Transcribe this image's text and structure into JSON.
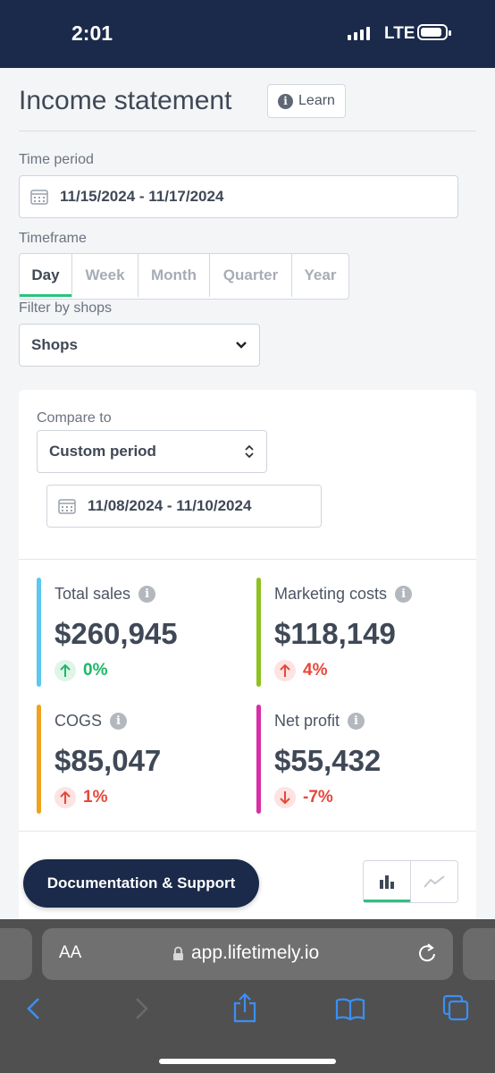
{
  "status_bar": {
    "time": "2:01",
    "network": "LTE"
  },
  "page": {
    "title": "Income statement",
    "learn_label": "Learn",
    "time_period_label": "Time period",
    "time_period_value": "11/15/2024 - 11/17/2024",
    "timeframe_label": "Timeframe",
    "timeframe_tabs": [
      "Day",
      "Week",
      "Month",
      "Quarter",
      "Year"
    ],
    "timeframe_selected": "Day",
    "filter_label": "Filter by shops",
    "shops_value": "Shops"
  },
  "compare": {
    "label": "Compare to",
    "mode_value": "Custom period",
    "period_value": "11/08/2024 - 11/10/2024"
  },
  "metrics": [
    {
      "label": "Total sales",
      "value": "$260,945",
      "change": "0%",
      "direction": "up",
      "trend": "positive",
      "bar_color": "#5bc8ee"
    },
    {
      "label": "Marketing costs",
      "value": "$118,149",
      "change": "4%",
      "direction": "up",
      "trend": "negative",
      "bar_color": "#8dc21f"
    },
    {
      "label": "COGS",
      "value": "$85,047",
      "change": "1%",
      "direction": "up",
      "trend": "negative",
      "bar_color": "#f0a21b"
    },
    {
      "label": "Net profit",
      "value": "$55,432",
      "change": "-7%",
      "direction": "down",
      "trend": "negative",
      "bar_color": "#d92ea5"
    }
  ],
  "colors": {
    "positive": "#1eb76a",
    "negative": "#e5483a",
    "accent": "#2cc37c",
    "navy": "#1b2a4a"
  },
  "support_button": "Documentation & Support",
  "browser": {
    "text_size_label": "AA",
    "url": "app.lifetimely.io"
  }
}
